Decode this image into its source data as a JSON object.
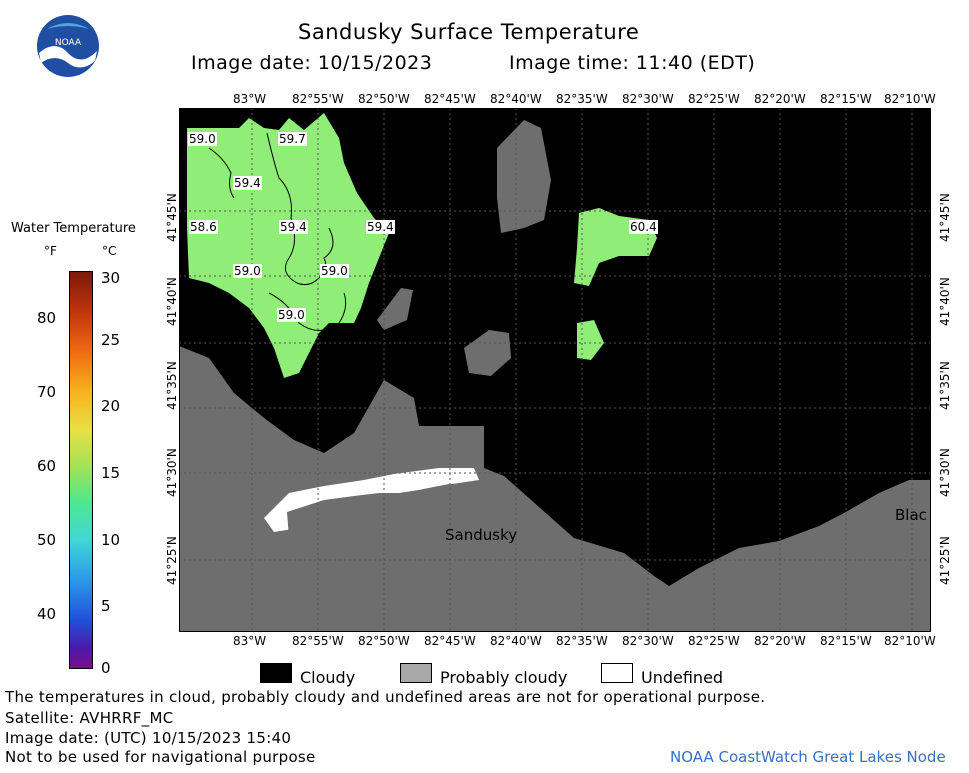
{
  "header": {
    "title": "Sandusky Surface Temperature",
    "image_date": "Image date: 10/15/2023",
    "image_time": "Image time: 11:40 (EDT)",
    "logo_text": "NOAA"
  },
  "colorbar": {
    "title": "Water Temperature",
    "unit_f": "°F",
    "unit_c": "°C",
    "f_ticks": [
      "80",
      "70",
      "60",
      "50",
      "40"
    ],
    "c_ticks": [
      "30",
      "25",
      "20",
      "15",
      "10",
      "5",
      "0"
    ]
  },
  "map": {
    "lon_labels": [
      "83°W",
      "82°55'W",
      "82°50'W",
      "82°45'W",
      "82°40'W",
      "82°35'W",
      "82°30'W",
      "82°25'W",
      "82°20'W",
      "82°15'W",
      "82°10'W"
    ],
    "lat_labels": [
      "41°45'N",
      "41°40'N",
      "41°35'N",
      "41°30'N",
      "41°25'N"
    ],
    "temp_labels": [
      "59.0",
      "59.7",
      "59.4",
      "58.6",
      "59.4",
      "59.4",
      "59.0",
      "59.0",
      "59.0",
      "60.4"
    ],
    "place_sandusky": "Sandusky",
    "place_blac": "Blac",
    "colors": {
      "water": "#90ee78",
      "land": "#6e6e6e",
      "cloud": "#000000",
      "prob_cloud": "#a8a8a8",
      "undefined": "#ffffff"
    }
  },
  "legend": {
    "cloudy": "Cloudy",
    "probably_cloudy": "Probably cloudy",
    "undefined": "Undefined"
  },
  "footer": {
    "note": "The temperatures in cloud, probably cloudy and undefined areas are not for operational purpose.",
    "satellite": "Satellite: AVHRRF_MC",
    "utc_date": "Image date: (UTC) 10/15/2023  15:40",
    "nav_warning": "Not to be used for navigational purpose",
    "credit": "NOAA CoastWatch Great Lakes Node"
  }
}
